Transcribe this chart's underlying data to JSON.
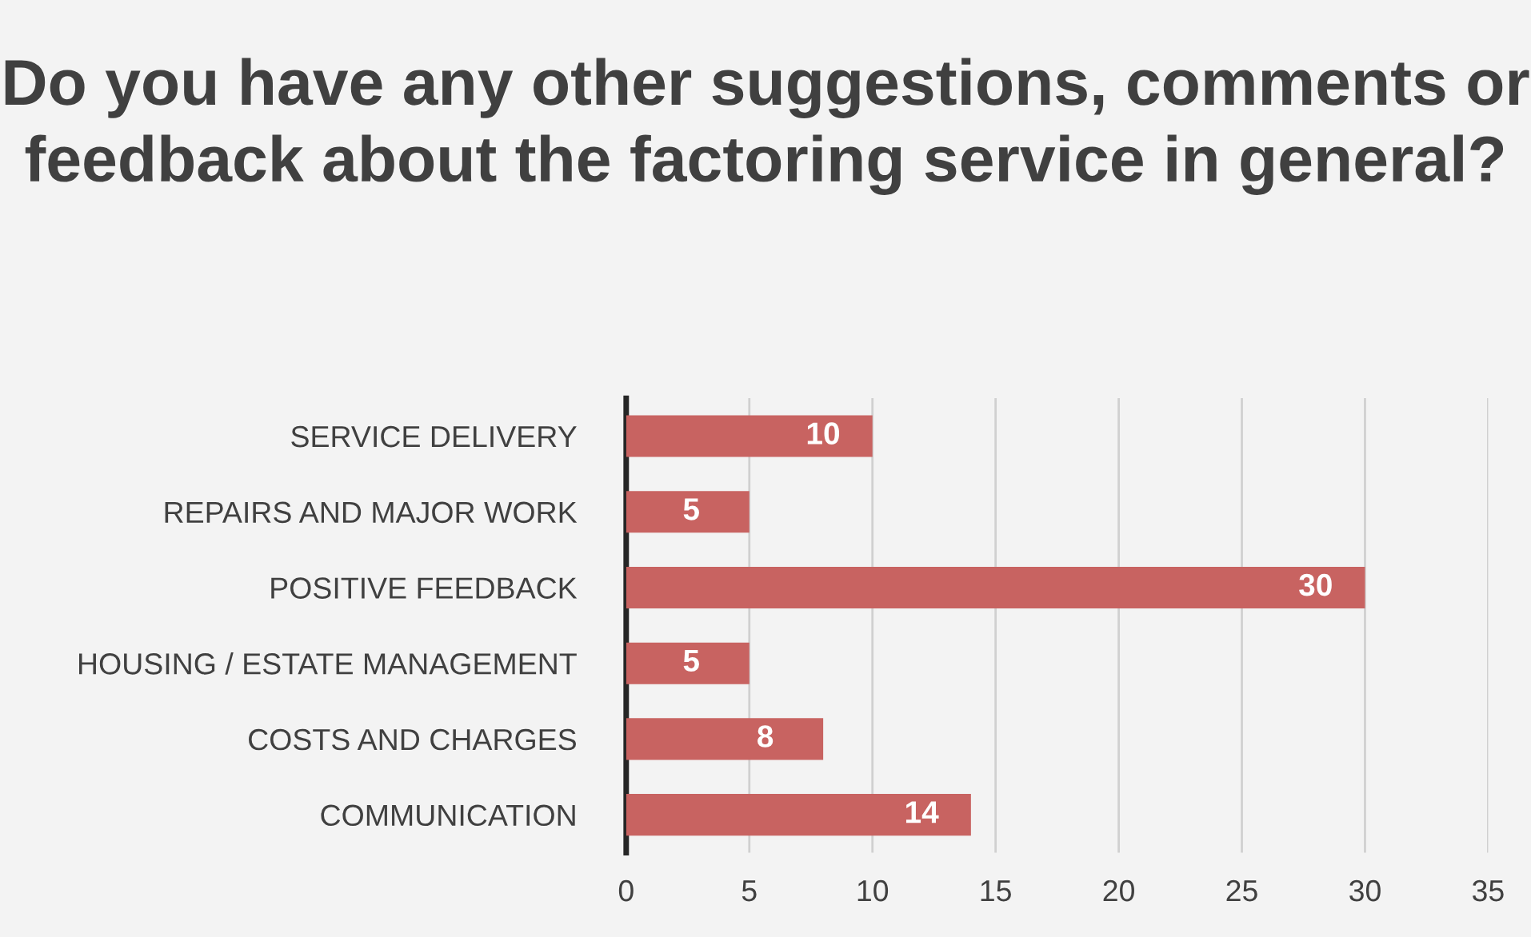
{
  "chart_data": {
    "type": "bar",
    "orientation": "horizontal",
    "title": "Do you have any other suggestions, comments or feedback about the factoring service in general?",
    "categories": [
      "SERVICE DELIVERY",
      "REPAIRS AND MAJOR WORK",
      "POSITIVE FEEDBACK",
      "HOUSING / ESTATE MANAGEMENT",
      "COSTS AND CHARGES",
      "COMMUNICATION"
    ],
    "values": [
      10,
      5,
      30,
      5,
      8,
      14
    ],
    "color": "#c86361",
    "xlim": [
      0,
      35
    ],
    "xticks": [
      0,
      5,
      10,
      15,
      20,
      25,
      30,
      35
    ],
    "grid": "x",
    "data_labels": true,
    "legend": false
  }
}
